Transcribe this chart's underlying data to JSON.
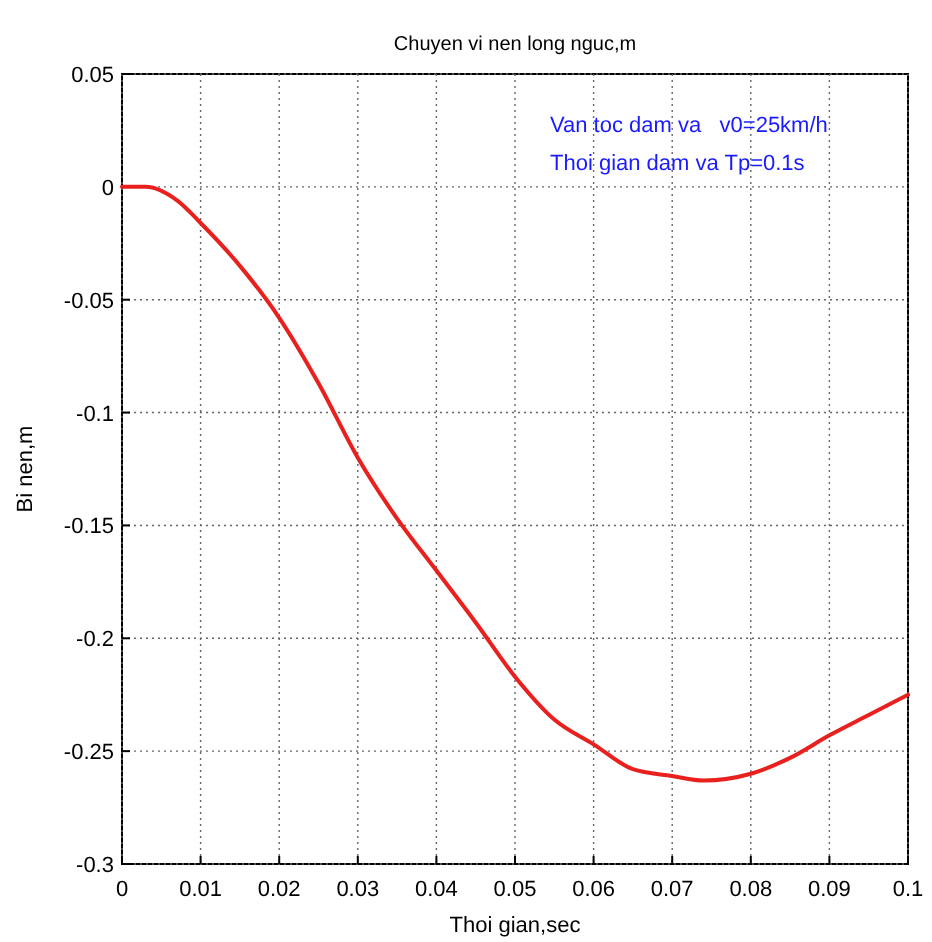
{
  "chart_data": {
    "type": "line",
    "title": "Chuyen vi nen long nguc,m",
    "xlabel": "Thoi gian,sec",
    "ylabel": "Bi nen,m",
    "annotations": [
      "Van toc dam va   v0=25km/h",
      "Thoi gian dam va Tp=0.1s"
    ],
    "x": [
      0,
      0.003,
      0.007,
      0.01,
      0.015,
      0.02,
      0.025,
      0.03,
      0.035,
      0.04,
      0.045,
      0.05,
      0.055,
      0.06,
      0.065,
      0.07,
      0.074,
      0.08,
      0.085,
      0.09,
      0.095,
      0.1
    ],
    "series": [
      {
        "color": "#e8201e",
        "values": [
          0,
          0,
          -0.006,
          -0.016,
          -0.035,
          -0.058,
          -0.087,
          -0.12,
          -0.147,
          -0.17,
          -0.193,
          -0.217,
          -0.236,
          -0.247,
          -0.258,
          -0.261,
          -0.263,
          -0.26,
          -0.253,
          -0.243,
          -0.234,
          -0.225
        ]
      }
    ],
    "xlim": [
      0,
      0.1
    ],
    "xticks": [
      0,
      0.01,
      0.02,
      0.03,
      0.04,
      0.05,
      0.06,
      0.07,
      0.08,
      0.09,
      0.1
    ],
    "ylim": [
      -0.3,
      0.05
    ],
    "yticks": [
      -0.3,
      -0.25,
      -0.2,
      -0.15,
      -0.1,
      -0.05,
      0,
      0.05
    ],
    "grid": true,
    "line_style": "solid",
    "marker": "none"
  }
}
